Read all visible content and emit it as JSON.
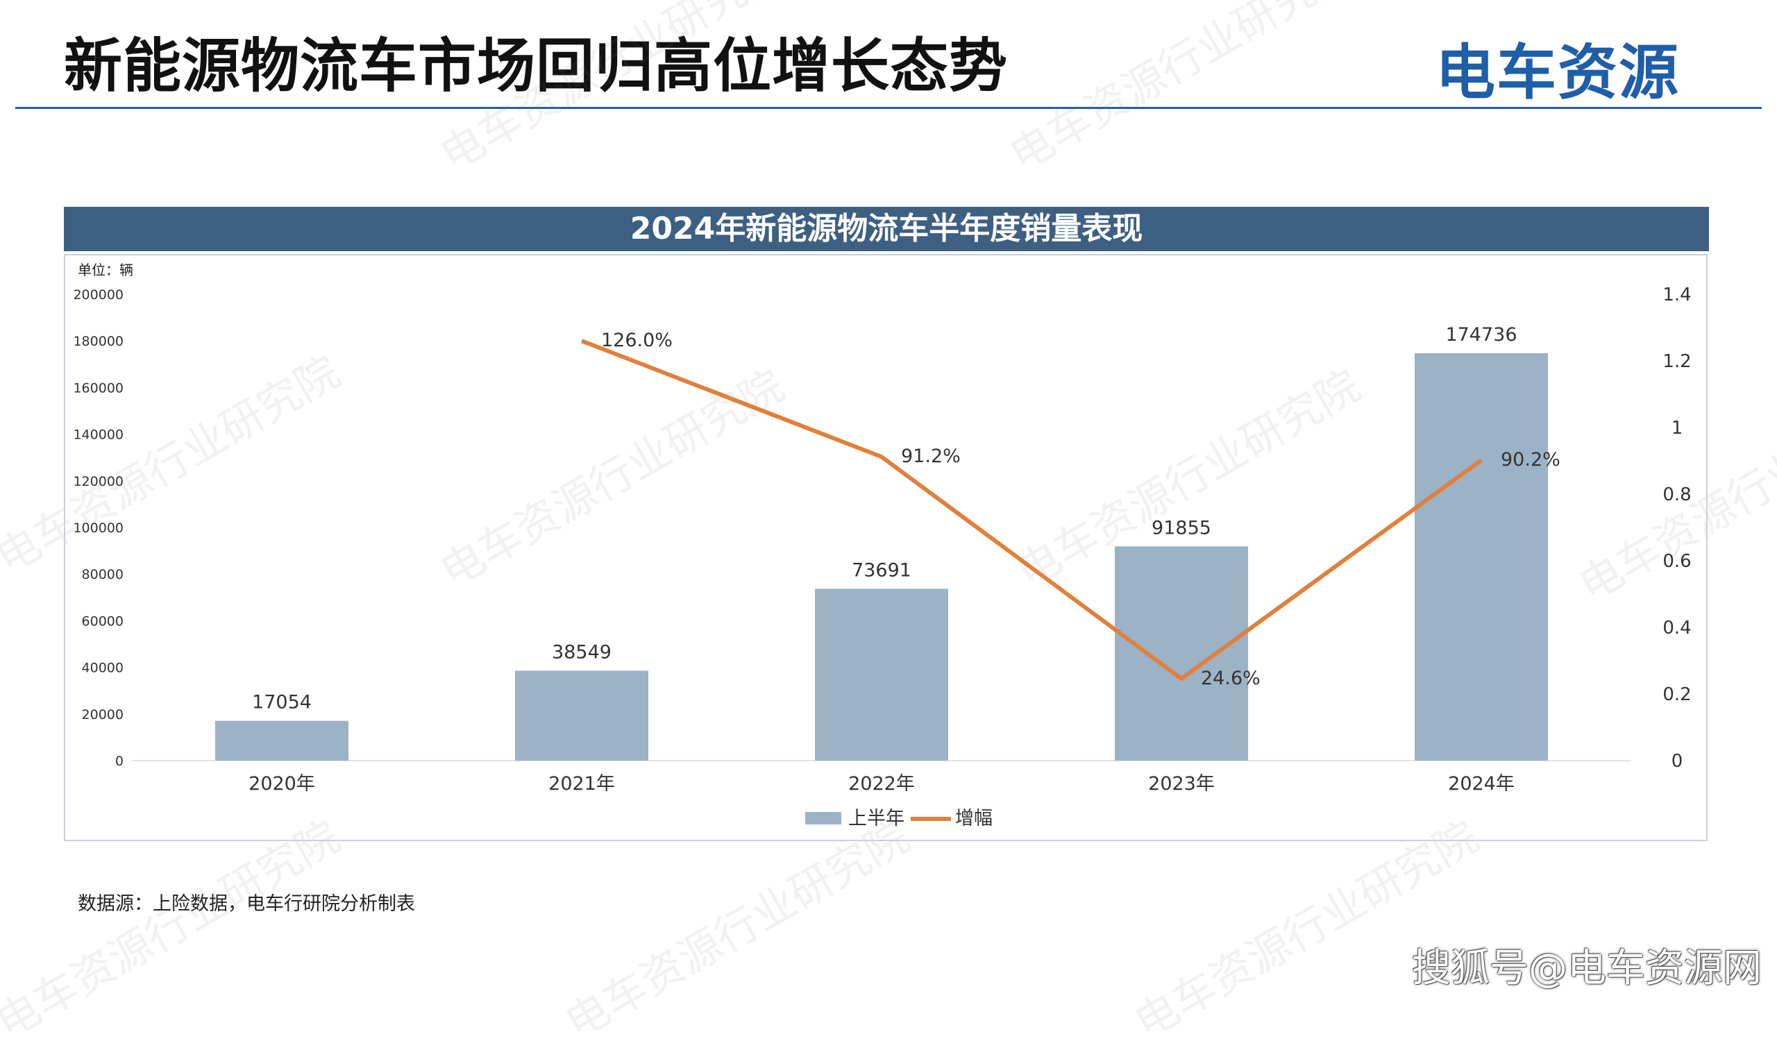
{
  "header": {
    "title": "新能源物流车市场回归高位增长态势",
    "logo_text": "电车资源"
  },
  "watermark_text": "电车资源行业研究院",
  "chart_data": {
    "type": "bar+line",
    "title": "2024年新能源物流车半年度销量表现",
    "unit_label": "单位：辆",
    "categories": [
      "2020年",
      "2021年",
      "2022年",
      "2023年",
      "2024年"
    ],
    "series": [
      {
        "name": "上半年",
        "type": "bar",
        "axis": "left",
        "values": [
          17054,
          38549,
          73691,
          91855,
          174736
        ],
        "labels": [
          "17054",
          "38549",
          "73691",
          "91855",
          "174736"
        ],
        "color": "#9cb2c7"
      },
      {
        "name": "增幅",
        "type": "line",
        "axis": "right",
        "values": [
          null,
          1.26,
          0.912,
          0.246,
          0.902
        ],
        "labels": [
          "",
          "126.0%",
          "91.2%",
          "24.6%",
          "90.2%"
        ],
        "color": "#e0803c"
      }
    ],
    "left_axis": {
      "min": 0,
      "max": 200000,
      "ticks": [
        "0",
        "20000",
        "40000",
        "60000",
        "80000",
        "100000",
        "120000",
        "140000",
        "160000",
        "180000",
        "200000"
      ]
    },
    "right_axis": {
      "min": 0,
      "max": 1.4,
      "ticks": [
        "0",
        "0.2",
        "0.4",
        "0.6",
        "0.8",
        "1",
        "1.2",
        "1.4"
      ]
    },
    "legend_position": "bottom",
    "grid": false
  },
  "source_note": "数据源：上险数据，电车行研院分析制表",
  "footer_credit": "搜狐号@电车资源网",
  "colors": {
    "banner": "#3d5f82",
    "rule": "#2f5c96",
    "bar": "#9cb2c7",
    "line": "#e0803c"
  }
}
